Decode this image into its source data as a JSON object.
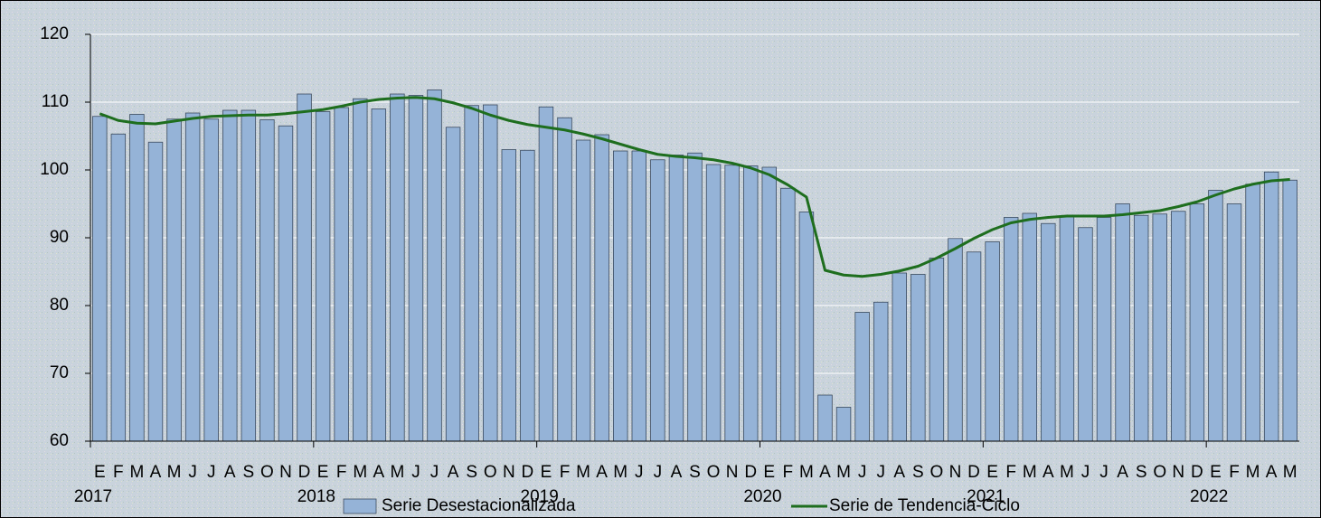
{
  "chart_data": {
    "type": "bar_line",
    "categories": [
      "E",
      "F",
      "M",
      "A",
      "M",
      "J",
      "J",
      "A",
      "S",
      "O",
      "N",
      "D",
      "E",
      "F",
      "M",
      "A",
      "M",
      "J",
      "J",
      "A",
      "S",
      "O",
      "N",
      "D",
      "E",
      "F",
      "M",
      "A",
      "M",
      "J",
      "J",
      "A",
      "S",
      "O",
      "N",
      "D",
      "E",
      "F",
      "M",
      "A",
      "M",
      "J",
      "J",
      "A",
      "S",
      "O",
      "N",
      "D",
      "E",
      "F",
      "M",
      "A",
      "M",
      "J",
      "J",
      "A",
      "S",
      "O",
      "N",
      "D",
      "E",
      "F",
      "M",
      "A",
      "M"
    ],
    "year_labels": [
      "2017",
      "2018",
      "2019",
      "2020",
      "2021",
      "2022"
    ],
    "series": [
      {
        "name": "Serie Desestacionalizada",
        "type": "bar",
        "color": "#95b3d7",
        "values": [
          107.9,
          105.3,
          108.2,
          104.1,
          107.5,
          108.4,
          107.5,
          108.8,
          108.8,
          107.4,
          106.5,
          111.2,
          108.6,
          109.2,
          110.5,
          109.0,
          111.2,
          111.0,
          111.8,
          106.3,
          109.5,
          109.6,
          103.0,
          102.9,
          109.3,
          107.7,
          104.4,
          105.2,
          102.8,
          102.8,
          101.5,
          102.2,
          102.5,
          100.8,
          100.7,
          100.6,
          100.4,
          97.3,
          93.8,
          66.8,
          65.0,
          79.0,
          80.5,
          84.8,
          84.6,
          87.0,
          89.9,
          87.9,
          89.4,
          93.0,
          93.6,
          92.1,
          93.2,
          91.5,
          93.0,
          95.0,
          93.3,
          93.5,
          93.9,
          95.0,
          97.0,
          95.0,
          97.9,
          99.7,
          98.5
        ]
      },
      {
        "name": "Serie de Tendencia-Ciclo",
        "type": "line",
        "color": "#1e6e1e",
        "values": [
          108.3,
          107.3,
          106.9,
          106.8,
          107.2,
          107.6,
          107.9,
          108.0,
          108.1,
          108.1,
          108.3,
          108.6,
          108.9,
          109.4,
          110.0,
          110.4,
          110.6,
          110.7,
          110.5,
          109.9,
          109.1,
          108.1,
          107.3,
          106.7,
          106.3,
          105.9,
          105.3,
          104.6,
          103.8,
          103.0,
          102.3,
          102.0,
          101.8,
          101.5,
          101.0,
          100.3,
          99.3,
          97.8,
          96.0,
          85.2,
          84.5,
          84.3,
          84.6,
          85.1,
          85.8,
          87.0,
          88.4,
          89.9,
          91.2,
          92.2,
          92.7,
          93.0,
          93.2,
          93.2,
          93.2,
          93.4,
          93.7,
          94.0,
          94.6,
          95.3,
          96.3,
          97.2,
          97.9,
          98.4,
          98.6
        ]
      }
    ],
    "ylim": [
      60,
      120
    ],
    "yticks": [
      60,
      70,
      80,
      90,
      100,
      110,
      120
    ],
    "grid": true
  }
}
